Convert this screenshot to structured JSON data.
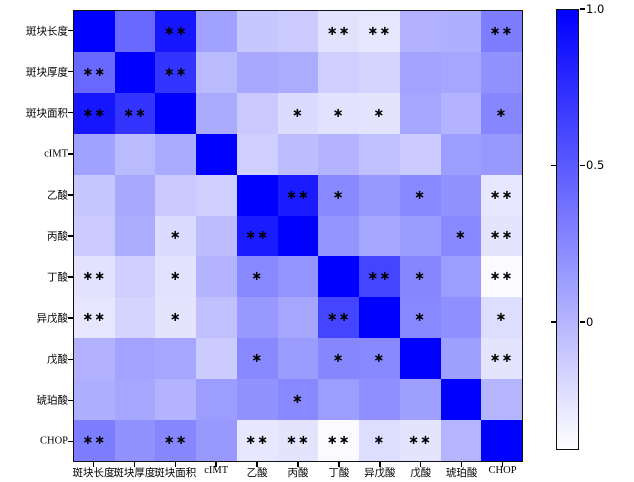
{
  "chart_data": {
    "type": "heatmap",
    "title": "",
    "categories": [
      "斑块长度",
      "斑块厚度",
      "斑块面积",
      "cIMT",
      "乙酸",
      "丙酸",
      "丁酸",
      "异戊酸",
      "戊酸",
      "琥珀酸",
      "CHOP"
    ],
    "matrix": [
      [
        1.0,
        0.42,
        0.88,
        0.11,
        -0.1,
        -0.12,
        -0.25,
        -0.27,
        0.02,
        0.03,
        0.31
      ],
      [
        0.42,
        1.0,
        0.71,
        -0.03,
        0.07,
        0.05,
        -0.14,
        -0.17,
        0.1,
        0.08,
        0.2
      ],
      [
        0.88,
        0.71,
        1.0,
        0.06,
        -0.11,
        -0.21,
        -0.25,
        -0.26,
        0.08,
        0.01,
        0.26
      ],
      [
        0.11,
        -0.03,
        0.06,
        1.0,
        -0.14,
        -0.04,
        0.01,
        -0.06,
        -0.12,
        0.13,
        0.16
      ],
      [
        -0.1,
        0.07,
        -0.11,
        -0.14,
        1.0,
        0.85,
        0.25,
        0.16,
        0.25,
        0.2,
        -0.28
      ],
      [
        -0.12,
        0.05,
        -0.21,
        -0.04,
        0.85,
        1.0,
        0.18,
        0.08,
        0.14,
        0.25,
        -0.26
      ],
      [
        -0.25,
        -0.14,
        -0.25,
        0.01,
        0.25,
        0.18,
        1.0,
        0.62,
        0.26,
        0.13,
        -0.39
      ],
      [
        -0.27,
        -0.17,
        -0.26,
        -0.06,
        0.16,
        0.08,
        0.62,
        1.0,
        0.25,
        0.21,
        -0.22
      ],
      [
        0.02,
        0.1,
        0.08,
        -0.12,
        0.25,
        0.14,
        0.26,
        0.25,
        1.0,
        0.12,
        -0.26
      ],
      [
        0.03,
        0.08,
        0.01,
        0.13,
        0.2,
        0.25,
        0.13,
        0.21,
        0.12,
        1.0,
        0.0
      ],
      [
        0.31,
        0.2,
        0.26,
        0.16,
        -0.28,
        -0.26,
        -0.39,
        -0.22,
        -0.26,
        0.0,
        1.0
      ]
    ],
    "significance": [
      [
        "",
        "",
        "**",
        "",
        "",
        "",
        "**",
        "**",
        "",
        "",
        "**"
      ],
      [
        "**",
        "",
        "**",
        "",
        "",
        "",
        "",
        "",
        "",
        "",
        ""
      ],
      [
        "**",
        "**",
        "",
        "",
        "",
        "*",
        "*",
        "*",
        "",
        "",
        "*"
      ],
      [
        "",
        "",
        "",
        "",
        "",
        "",
        "",
        "",
        "",
        "",
        ""
      ],
      [
        "",
        "",
        "",
        "",
        "",
        "**",
        "*",
        "",
        "*",
        "",
        "**"
      ],
      [
        "",
        "",
        "*",
        "",
        "**",
        "",
        "",
        "",
        "",
        "*",
        "**"
      ],
      [
        "**",
        "",
        "*",
        "",
        "*",
        "",
        "",
        "**",
        "*",
        "",
        "**"
      ],
      [
        "**",
        "",
        "*",
        "",
        "",
        "",
        "**",
        "",
        "*",
        "",
        "*"
      ],
      [
        "",
        "",
        "",
        "",
        "*",
        "",
        "*",
        "*",
        "",
        "",
        "**"
      ],
      [
        "",
        "",
        "",
        "",
        "",
        "*",
        "",
        "",
        "",
        "",
        ""
      ],
      [
        "**",
        "",
        "**",
        "",
        "**",
        "**",
        "**",
        "*",
        "**",
        "",
        ""
      ]
    ],
    "colorbar": {
      "tick_labels": [
        "1.0",
        "0.5",
        "0"
      ],
      "tick_values": [
        1.0,
        0.5,
        0
      ],
      "vmin": -0.41,
      "vmax": 1.0,
      "color_max": "#0000FF",
      "color_min": "#FFFFFF"
    },
    "xlabel": "",
    "ylabel": "",
    "grid": false,
    "legend_position": "right-colorbar"
  },
  "colors": {
    "background": "#FFFFFF",
    "axis": "#111111",
    "star": "#000000"
  }
}
